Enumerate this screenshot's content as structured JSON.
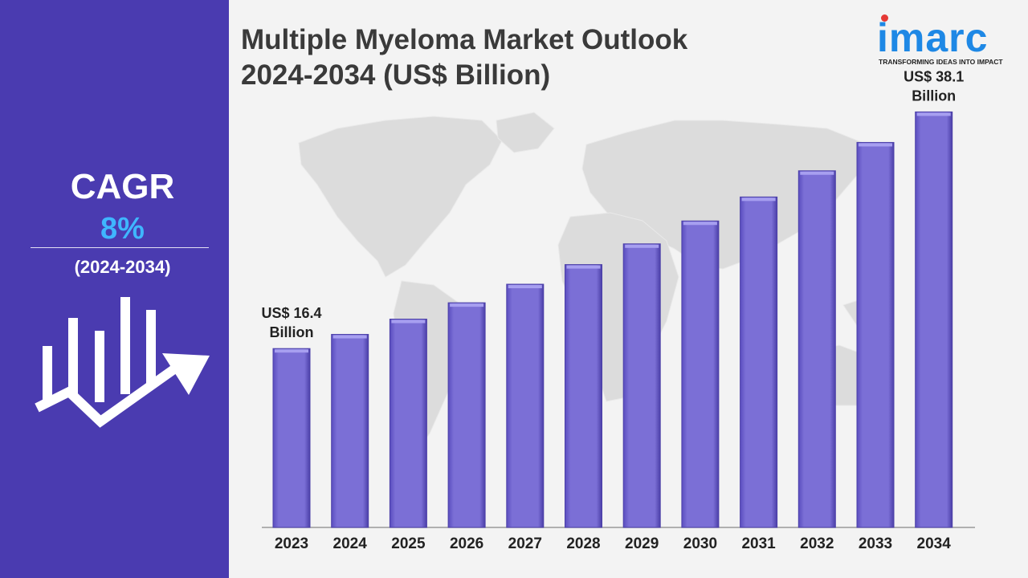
{
  "sidebar": {
    "cagr_label": "CAGR",
    "cagr_value": "8%",
    "cagr_period": "(2024-2034)"
  },
  "title_line1": "Multiple Myeloma Market Outlook",
  "title_line2": "2024-2034 (US$ Billion)",
  "logo": {
    "word": "imarc",
    "tagline": "TRANSFORMING IDEAS INTO IMPACT"
  },
  "colors": {
    "sidebar": "#4a3bb0",
    "bar": "#7b6fd6",
    "bar_edge": "#4b3fa8",
    "cagr_value": "#3fb6ff",
    "logo": "#1e88e5"
  },
  "chart_data": {
    "type": "bar",
    "title": "Multiple Myeloma Market Outlook 2024-2034 (US$ Billion)",
    "categories": [
      "2023",
      "2024",
      "2025",
      "2026",
      "2027",
      "2028",
      "2029",
      "2030",
      "2031",
      "2032",
      "2033",
      "2034"
    ],
    "values": [
      16.4,
      17.7,
      19.1,
      20.6,
      22.3,
      24.1,
      26.0,
      28.1,
      30.3,
      32.7,
      35.3,
      38.1
    ],
    "ylim": [
      0,
      41
    ],
    "xlabel": "",
    "ylabel": "",
    "grid": false,
    "annotations": [
      {
        "index": 0,
        "line1": "US$ 16.4",
        "line2": "Billion"
      },
      {
        "index": 11,
        "line1": "US$ 38.1",
        "line2": "Billion"
      }
    ]
  }
}
